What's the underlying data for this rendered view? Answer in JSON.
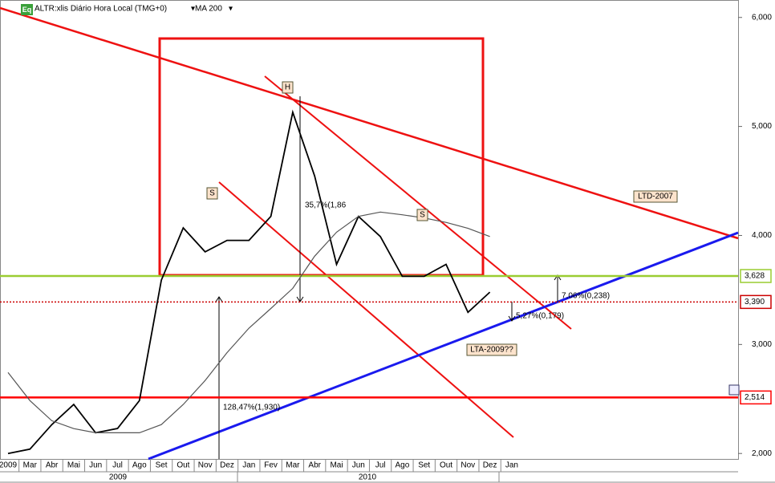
{
  "chart_data": {
    "type": "line",
    "badge": "Eq",
    "title": "ALTR:xlis Diário Hora Local (TMG+0)",
    "indicator": "MA 200",
    "categories": [
      "2009",
      "Mar",
      "Abr",
      "Mai",
      "Jun",
      "Jul",
      "Ago",
      "Set",
      "Out",
      "Nov",
      "Dez",
      "Jan",
      "Fev",
      "Mar",
      "Abr",
      "Mai",
      "Jun",
      "Jul",
      "Ago",
      "Set",
      "Out",
      "Nov",
      "Dez",
      "Jan"
    ],
    "years": [
      "2009",
      "2010"
    ],
    "series": [
      {
        "name": "ALTR:xlis",
        "color": "#000000",
        "values": [
          2000,
          2040,
          2265,
          2450,
          2190,
          2230,
          2485,
          3590,
          4070,
          3850,
          3955,
          3955,
          4175,
          5130,
          4545,
          3735,
          4175,
          3990,
          3625,
          3625,
          3735,
          3295,
          3480,
          null
        ]
      },
      {
        "name": "MA 200",
        "color": "#555555",
        "values": [
          2743,
          2485,
          2300,
          2228,
          2190,
          2190,
          2190,
          2265,
          2450,
          2670,
          2925,
          3150,
          3330,
          3515,
          3810,
          4030,
          4175,
          4215,
          4190,
          4160,
          4120,
          4065,
          3990,
          null
        ]
      }
    ],
    "ylim": [
      1950,
      6160
    ],
    "yticks": [
      {
        "value": 2000,
        "label": "2,000"
      },
      {
        "value": 3000,
        "label": "3,000"
      },
      {
        "value": 4000,
        "label": "4,000"
      },
      {
        "value": 5000,
        "label": "5,000"
      },
      {
        "value": 6000,
        "label": "6,000"
      }
    ],
    "levels": [
      {
        "value": 3628,
        "label": "3,628",
        "color": "#9acd32"
      },
      {
        "value": 3390,
        "label": "3,390",
        "color": "#cc0000"
      },
      {
        "value": 2514,
        "label": "2,514",
        "color": "#ff0000"
      }
    ],
    "annotations": [
      "35,7%(1,86",
      "128,47%(1,930)",
      "7,06%(0,238)",
      "5,27%(0,179)"
    ],
    "labels": [
      "LTD-2007",
      "LTA-2009??",
      "H",
      "S",
      "S"
    ]
  }
}
